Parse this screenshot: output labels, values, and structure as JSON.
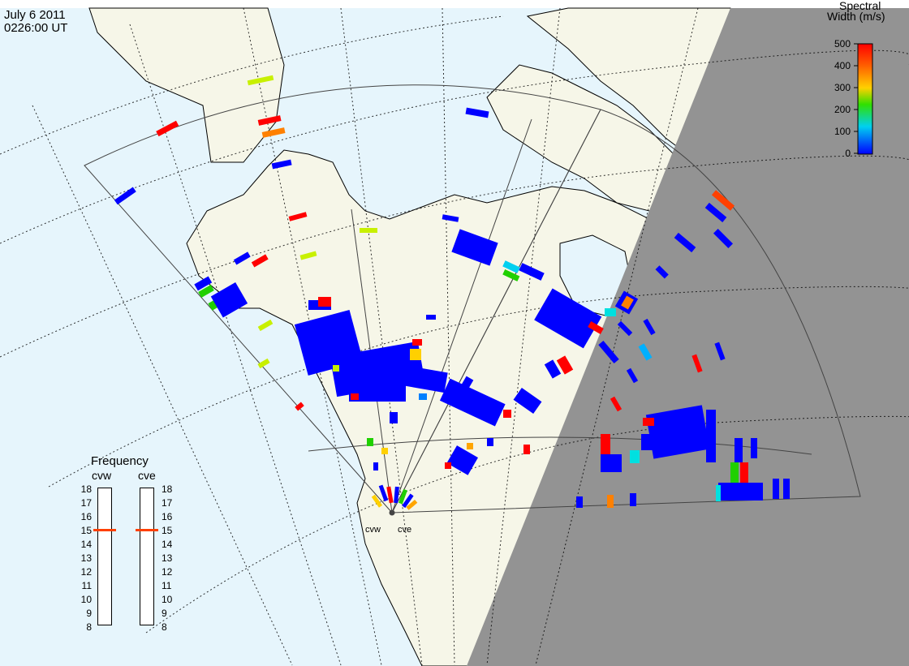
{
  "title": {
    "date": "July 6 2011",
    "time": "0226:00 UT"
  },
  "colorbar": {
    "title_line1": "Spectral",
    "title_line2": "Width (m/s)",
    "ticks": [
      "500",
      "400",
      "300",
      "200",
      "100",
      "0"
    ],
    "colors": [
      "#ff0000",
      "#ffa500",
      "#c8f000",
      "#20d000",
      "#00e0e0",
      "#0000ff"
    ]
  },
  "frequency_panel": {
    "title": "Frequency",
    "radars": [
      "cvw",
      "cve"
    ],
    "ticks": [
      "18",
      "17",
      "16",
      "15",
      "14",
      "13",
      "12",
      "11",
      "10",
      "9",
      "8"
    ],
    "selected": {
      "cvw": 15,
      "cve": 15
    },
    "marker_color": "#ff4000"
  },
  "radar_sites": [
    "cvw",
    "cve"
  ],
  "map_colors": {
    "ocean": "#e6f5fc",
    "land": "#f6f6e8",
    "night": "#939393"
  }
}
